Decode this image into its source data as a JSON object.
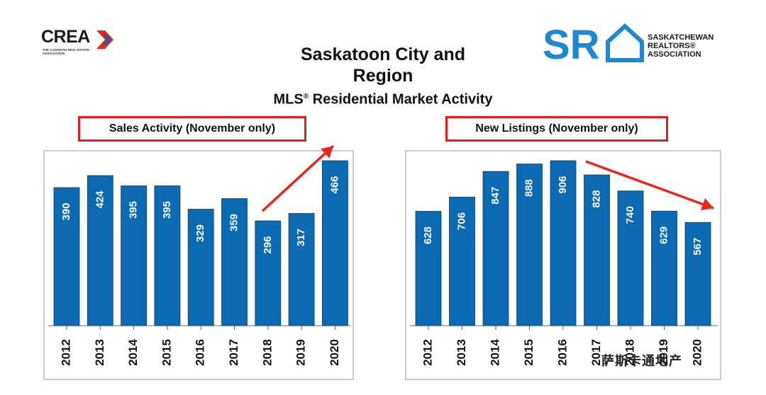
{
  "logos": {
    "crea_name": "CREA",
    "crea_sub": "THE CANADIAN REAL ESTATE ASSOCIATION",
    "sra_initials": "SR",
    "sra_line1": "SASKATCHEWAN",
    "sra_line2": "REALTORS®",
    "sra_line3": "ASSOCIATION"
  },
  "title": {
    "line1": "Saskatoon City and",
    "line2": "Region",
    "line3_prefix": "MLS",
    "line3_reg": "®",
    "line3_suffix": " Residential Market Activity"
  },
  "colors": {
    "bar": "#0c6ab3",
    "arrow": "#e8261c",
    "label_border": "#e02020"
  },
  "watermark": "萨斯卡通地产",
  "chart_data": [
    {
      "type": "bar",
      "title": "Sales Activity (November only)",
      "categories": [
        "2012",
        "2013",
        "2014",
        "2015",
        "2016",
        "2017",
        "2018",
        "2019",
        "2020"
      ],
      "values": [
        390,
        424,
        395,
        395,
        329,
        359,
        296,
        317,
        466
      ],
      "data_labels": true,
      "grid": false,
      "annotation": "upward trend arrow from 2018 to 2020"
    },
    {
      "type": "bar",
      "title": "New Listings (November only)",
      "categories": [
        "2012",
        "2013",
        "2014",
        "2015",
        "2016",
        "2017",
        "2018",
        "2019",
        "2020"
      ],
      "values": [
        628,
        706,
        847,
        888,
        906,
        828,
        740,
        629,
        567
      ],
      "data_labels": true,
      "grid": false,
      "annotation": "downward trend arrow from 2016 to 2020"
    }
  ]
}
